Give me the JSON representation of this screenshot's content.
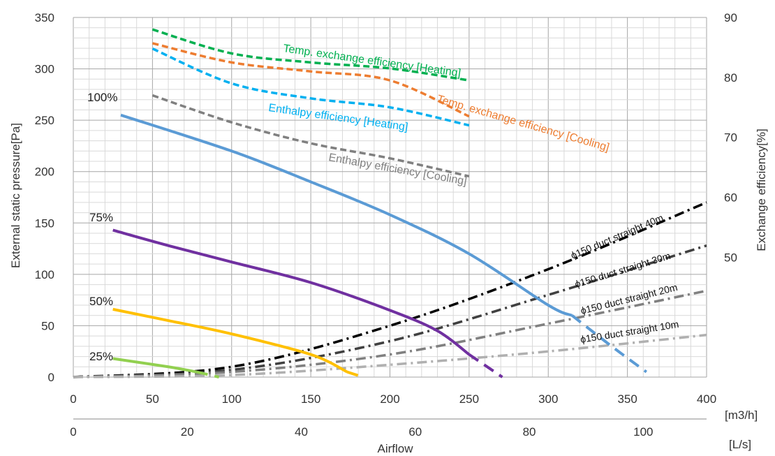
{
  "chart_data": {
    "type": "line",
    "left_axis": {
      "label": "External static pressure[Pa]",
      "range": [
        0,
        350
      ],
      "ticks": [
        "0",
        "50",
        "100",
        "150",
        "200",
        "250",
        "300",
        "350"
      ]
    },
    "right_axis": {
      "label": "Exchange efficiency[%]",
      "range": [
        30,
        90
      ],
      "ticks": [
        "50",
        "60",
        "70",
        "80",
        "90"
      ]
    },
    "x_axis": {
      "range": [
        0,
        400
      ],
      "ticks": [
        "0",
        "50",
        "100",
        "150",
        "200",
        "250",
        "300",
        "350",
        "400"
      ],
      "unit": "[m3/h]"
    },
    "x_axis_secondary": {
      "ticks": [
        "0",
        "20",
        "40",
        "60",
        "80",
        "100"
      ],
      "unit": "[L/s]",
      "label": "Airflow"
    },
    "grid": true,
    "colors": {
      "fan_100": "#5b9bd5",
      "fan_75": "#7030a0",
      "fan_50": "#ffc000",
      "fan_25": "#92d050",
      "temp_heating": "#00b050",
      "temp_cooling": "#ed7d31",
      "enth_heating": "#00b0f0",
      "enth_cooling": "#808080",
      "duct_40": "#000000",
      "duct_30": "#404040",
      "duct_20": "#808080",
      "duct_10": "#b0b0b0"
    },
    "fan_series": [
      {
        "name": "100%",
        "color_key": "fan_100",
        "solid": [
          [
            30,
            255
          ],
          [
            100,
            220
          ],
          [
            150,
            190
          ],
          [
            200,
            158
          ],
          [
            250,
            120
          ],
          [
            300,
            70
          ],
          [
            315,
            60
          ]
        ],
        "dashed": [
          [
            315,
            60
          ],
          [
            340,
            30
          ],
          [
            362,
            5
          ]
        ]
      },
      {
        "name": "75%",
        "color_key": "fan_75",
        "solid": [
          [
            25,
            143
          ],
          [
            60,
            128
          ],
          [
            100,
            112
          ],
          [
            150,
            92
          ],
          [
            200,
            65
          ],
          [
            230,
            45
          ],
          [
            250,
            22
          ]
        ],
        "dashed": [
          [
            250,
            22
          ],
          [
            271,
            0
          ]
        ]
      },
      {
        "name": "50%",
        "color_key": "fan_50",
        "solid": [
          [
            25,
            66
          ],
          [
            60,
            55
          ],
          [
            100,
            42
          ],
          [
            150,
            22
          ],
          [
            173,
            5
          ]
        ],
        "dashed": [
          [
            173,
            5
          ],
          [
            183,
            0
          ]
        ]
      },
      {
        "name": "25%",
        "color_key": "fan_25",
        "solid": [
          [
            25,
            18
          ],
          [
            60,
            10
          ],
          [
            78,
            5
          ]
        ],
        "dashed": [
          [
            78,
            5
          ],
          [
            92,
            0
          ]
        ]
      }
    ],
    "efficiency_series": [
      {
        "name": "Temp. exchange efficiency [Heating]",
        "color_key": "temp_heating",
        "points": [
          [
            50,
            88
          ],
          [
            100,
            84
          ],
          [
            150,
            82.5
          ],
          [
            200,
            81.5
          ],
          [
            250,
            79.5
          ]
        ]
      },
      {
        "name": "Temp. exchange efficiency [Cooling]",
        "color_key": "temp_cooling",
        "points": [
          [
            50,
            85.7
          ],
          [
            100,
            82.5
          ],
          [
            150,
            81
          ],
          [
            200,
            79.5
          ],
          [
            250,
            73.5
          ]
        ]
      },
      {
        "name": "Enthalpy efficiency [Heating]",
        "color_key": "enth_heating",
        "points": [
          [
            50,
            84.8
          ],
          [
            100,
            79
          ],
          [
            150,
            76.5
          ],
          [
            200,
            75
          ],
          [
            250,
            72
          ]
        ]
      },
      {
        "name": "Enthalpy efficiency [Cooling]",
        "color_key": "enth_cooling",
        "points": [
          [
            50,
            77
          ],
          [
            100,
            72.5
          ],
          [
            150,
            69
          ],
          [
            200,
            66.5
          ],
          [
            250,
            63.5
          ]
        ]
      }
    ],
    "duct_series": [
      {
        "name": "ϕ150 duct straight 40m",
        "color_key": "duct_40",
        "points": [
          [
            0,
            0
          ],
          [
            100,
            10
          ],
          [
            200,
            50
          ],
          [
            300,
            105
          ],
          [
            400,
            170
          ]
        ]
      },
      {
        "name": "ϕ150 duct straight 30m",
        "color_key": "duct_30",
        "points": [
          [
            0,
            0
          ],
          [
            100,
            7
          ],
          [
            200,
            35
          ],
          [
            300,
            80
          ],
          [
            400,
            128
          ]
        ]
      },
      {
        "name": "ϕ150 duct straight 20m",
        "color_key": "duct_20",
        "points": [
          [
            0,
            0
          ],
          [
            100,
            5
          ],
          [
            200,
            22
          ],
          [
            300,
            52
          ],
          [
            400,
            84
          ]
        ]
      },
      {
        "name": "ϕ150 duct straight 10m",
        "color_key": "duct_10",
        "points": [
          [
            0,
            0
          ],
          [
            100,
            2
          ],
          [
            200,
            12
          ],
          [
            300,
            25
          ],
          [
            400,
            41
          ]
        ]
      }
    ]
  }
}
